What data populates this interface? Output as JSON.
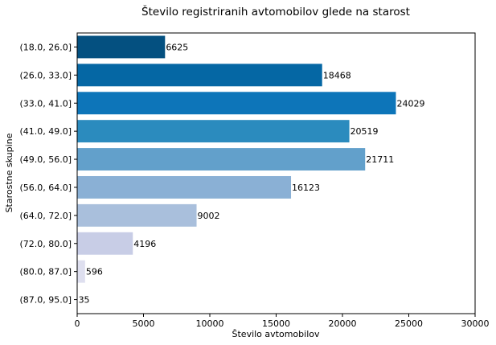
{
  "chart_data": {
    "type": "bar",
    "orientation": "horizontal",
    "title": "Število registriranih avtomobilov glede na starost",
    "xlabel": "Število avtomobilov",
    "ylabel": "Starostne skupine",
    "xlim": [
      0,
      30000
    ],
    "x_ticks": [
      "0",
      "5000",
      "10000",
      "15000",
      "20000",
      "25000",
      "30000"
    ],
    "grid": false,
    "categories": [
      "(18.0, 26.0]",
      "(26.0, 33.0]",
      "(33.0, 41.0]",
      "(41.0, 49.0]",
      "(49.0, 56.0]",
      "(56.0, 64.0]",
      "(64.0, 72.0]",
      "(72.0, 80.0]",
      "(80.0, 87.0]",
      "(87.0, 95.0]"
    ],
    "values": [
      6625,
      18468,
      24029,
      20519,
      21711,
      16123,
      9002,
      4196,
      596,
      35
    ],
    "value_labels": [
      "6625",
      "18468",
      "24029",
      "20519",
      "21711",
      "16123",
      "9002",
      "4196",
      "596",
      "35"
    ],
    "colors": [
      "#045080",
      "#0567a4",
      "#0d75b9",
      "#2b8bbe",
      "#62a0cb",
      "#8ab0d5",
      "#a9bfdc",
      "#c8cde6",
      "#dedfef",
      "#f3f1f8"
    ]
  }
}
